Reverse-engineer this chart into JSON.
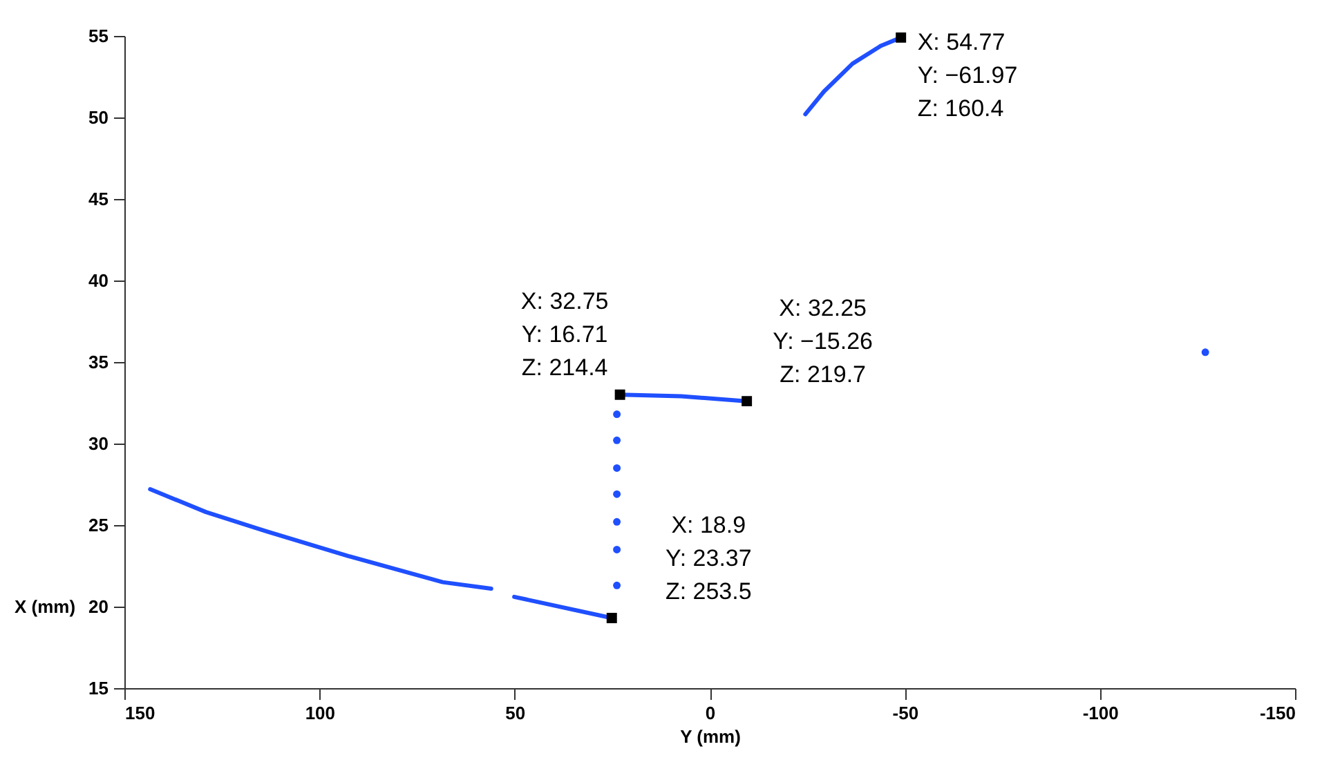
{
  "chart_data": {
    "type": "line",
    "xlabel": "Y (mm)",
    "ylabel": "X (mm)",
    "xlim": [
      150,
      -150
    ],
    "xticks": [
      150,
      100,
      50,
      0,
      -50,
      -100,
      -150
    ],
    "ylim": [
      15,
      55
    ],
    "yticks": [
      15,
      20,
      25,
      30,
      35,
      40,
      45,
      50,
      55
    ],
    "grid": false,
    "series": [
      {
        "color": "#1f4fff",
        "x": [
          143.4,
          129.1,
          113.4,
          92.6,
          68.4,
          56.0
        ],
        "values": [
          27.2,
          25.8,
          24.6,
          23.1,
          21.5,
          21.1
        ]
      },
      {
        "color": "#1f4fff",
        "x": [
          50.1,
          25.1
        ],
        "values": [
          20.6,
          19.3
        ]
      },
      {
        "color": "#1f4fff",
        "x": [
          23.0,
          7.3,
          -9.5
        ],
        "values": [
          33.0,
          32.9,
          32.6
        ]
      },
      {
        "color": "#1f4fff",
        "x": [
          -24.5,
          -29.3,
          -36.6,
          -43.9,
          -49.0
        ],
        "values": [
          50.2,
          51.6,
          53.3,
          54.4,
          54.9
        ]
      },
      {
        "type": "scatter",
        "marker": "circle",
        "color": "#1f4fff",
        "x": [
          23.8,
          23.8,
          23.8,
          23.8,
          23.8,
          23.8,
          23.8,
          -127.0
        ],
        "values": [
          31.8,
          30.2,
          28.5,
          26.9,
          25.2,
          23.5,
          21.3,
          35.6
        ]
      },
      {
        "type": "scatter",
        "marker": "square",
        "color": "#000000",
        "x": [
          -49.0,
          23.0,
          -9.5,
          25.1
        ],
        "values": [
          54.9,
          33.0,
          32.6,
          19.3
        ]
      }
    ],
    "annotations": [
      {
        "text": "X: 54.77\nY: −61.97\nZ: 160.4",
        "x": -49.0,
        "y": 54.9
      },
      {
        "text": "X: 32.75\nY: 16.71\nZ: 214.4",
        "x": 23.0,
        "y": 33.0
      },
      {
        "text": "X: 32.25\nY: −15.26\nZ: 219.7",
        "x": -9.5,
        "y": 32.6
      },
      {
        "text": "X: 18.9\nY: 23.37\nZ: 253.5",
        "x": 25.1,
        "y": 19.3
      }
    ]
  }
}
